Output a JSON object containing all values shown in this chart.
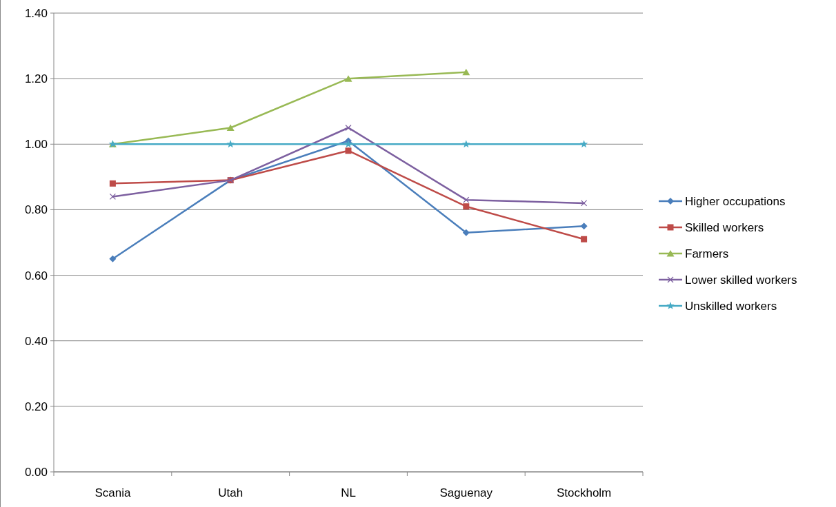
{
  "chart_data": {
    "type": "line",
    "categories": [
      "Scania",
      "Utah",
      "NL",
      "Saguenay",
      "Stockholm"
    ],
    "series": [
      {
        "name": "Higher occupations",
        "color": "#4a7ebb",
        "marker": "diamond",
        "values": [
          0.65,
          0.89,
          1.01,
          0.73,
          0.75
        ]
      },
      {
        "name": "Skilled workers",
        "color": "#be4b48",
        "marker": "square",
        "values": [
          0.88,
          0.89,
          0.98,
          0.81,
          0.71
        ]
      },
      {
        "name": "Farmers",
        "color": "#98b954",
        "marker": "triangle",
        "values": [
          1.0,
          1.05,
          1.2,
          1.22,
          null
        ]
      },
      {
        "name": "Lower skilled workers",
        "color": "#7d60a0",
        "marker": "cross",
        "values": [
          0.84,
          0.89,
          1.05,
          0.83,
          0.82
        ]
      },
      {
        "name": "Unskilled workers",
        "color": "#46aac5",
        "marker": "star",
        "values": [
          1.0,
          1.0,
          1.0,
          1.0,
          1.0
        ]
      }
    ],
    "ylim": [
      0,
      1.4
    ],
    "yticks": [
      {
        "value": 0,
        "label": "0.00"
      },
      {
        "value": 0.2,
        "label": "0.20"
      },
      {
        "value": 0.4,
        "label": "0.40"
      },
      {
        "value": 0.6,
        "label": "0.60"
      },
      {
        "value": 0.8,
        "label": "0.80"
      },
      {
        "value": 1.0,
        "label": "1.00"
      },
      {
        "value": 1.2,
        "label": "1.20"
      },
      {
        "value": 1.4,
        "label": "1.40"
      }
    ],
    "grid": "y",
    "legend": "right"
  }
}
